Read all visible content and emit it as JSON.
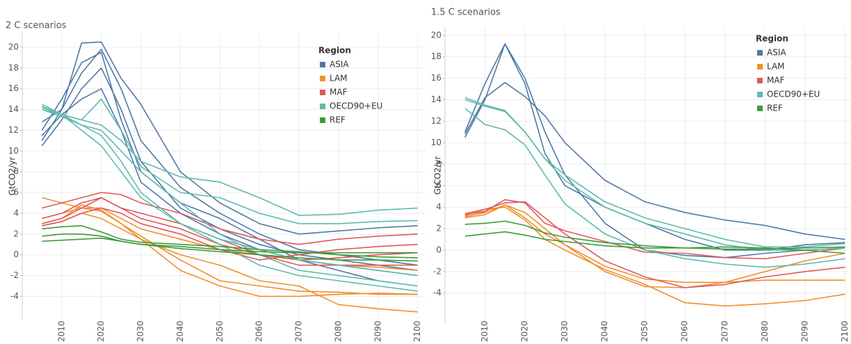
{
  "chart_data": [
    {
      "type": "line",
      "title": "2 C scenarios",
      "y_label": "GtCO2/yr",
      "legend_title": "Region",
      "legend": "upper right",
      "grid": true,
      "x": [
        2005,
        2010,
        2015,
        2020,
        2025,
        2030,
        2040,
        2050,
        2060,
        2070,
        2080,
        2090,
        2100
      ],
      "xlim": [
        2000,
        2102
      ],
      "xticks": [
        2010,
        2020,
        2030,
        2040,
        2050,
        2060,
        2070,
        2080,
        2090,
        2100
      ],
      "ylim": [
        -6.25,
        21.4
      ],
      "yticks": [
        -4,
        -2,
        0,
        2,
        4,
        6,
        8,
        10,
        12,
        14,
        16,
        18,
        20
      ],
      "series": [
        {
          "name": "ASIA",
          "color": "#4e79a7",
          "lines": [
            [
              11,
              14,
              20.4,
              20.5,
              17,
              14.5,
              8,
              5,
              3,
              2,
              2.3,
              2.6,
              2.8
            ],
            [
              12.8,
              14,
              17.5,
              19.8,
              16,
              11,
              6.5,
              4,
              2,
              0.5,
              0,
              -0.5,
              -1
            ],
            [
              10.5,
              13,
              16,
              18,
              14,
              9,
              4.5,
              2.5,
              1,
              0,
              -0.5,
              -1,
              -1.5
            ],
            [
              12,
              15,
              18.5,
              19.5,
              13,
              8,
              5,
              3.5,
              1.5,
              -0.5,
              -1.5,
              -2.5,
              -3
            ],
            [
              11.5,
              13.5,
              15,
              16,
              12,
              7,
              4,
              2,
              0.5,
              -0.5,
              -1,
              -1.5,
              -2
            ]
          ]
        },
        {
          "name": "LAM",
          "color": "#f28e2b",
          "lines": [
            [
              5.5,
              5,
              4.5,
              4.2,
              3,
              1.8,
              -0.5,
              -2.5,
              -3,
              -3.5,
              -3.6,
              -3.8,
              -3.8
            ],
            [
              3,
              3.5,
              4.8,
              4.3,
              3,
              1.5,
              -1.5,
              -3,
              -4,
              -4,
              -3.8,
              -3.7,
              -3.8
            ],
            [
              2.8,
              3.2,
              4,
              3.5,
              2.5,
              1.5,
              0,
              -1,
              -2.5,
              -3,
              -4.8,
              -5.2,
              -5.5
            ],
            [
              3.5,
              4,
              4.5,
              4.5,
              3.5,
              2.5,
              1.5,
              0.5,
              0,
              -0.5,
              -1,
              -1.2,
              -1.5
            ]
          ]
        },
        {
          "name": "MAF",
          "color": "#e15759",
          "lines": [
            [
              4.5,
              5,
              5.5,
              6,
              5.8,
              5,
              4,
              2.5,
              1.5,
              1,
              1.5,
              1.8,
              2
            ],
            [
              3,
              3.5,
              4.5,
              5.5,
              4.5,
              3.5,
              2.5,
              1,
              0,
              -0.5,
              -0.3,
              0,
              0.2
            ],
            [
              3.5,
              4,
              5,
              5.5,
              4.5,
              4,
              3,
              1.5,
              0,
              -1,
              -1,
              -1,
              -1
            ],
            [
              2.8,
              3.2,
              4,
              4.5,
              4,
              3,
              2,
              0.5,
              -0.5,
              0,
              0.5,
              0.8,
              1
            ]
          ]
        },
        {
          "name": "OECD90+EU",
          "color": "#5fb9ad",
          "lines": [
            [
              14.5,
              13.5,
              13,
              12.5,
              11,
              9,
              7.5,
              7,
              5.5,
              3.8,
              3.9,
              4.3,
              4.5
            ],
            [
              14.2,
              13.5,
              13,
              15,
              12,
              8.5,
              6,
              5.5,
              4,
              3,
              3,
              3.2,
              3.3
            ],
            [
              14,
              13.5,
              12.5,
              12,
              10,
              8,
              5,
              2,
              0,
              -1.5,
              -2,
              -2.5,
              -3
            ],
            [
              14,
              13.3,
              12.5,
              11.5,
              9,
              6,
              3,
              1,
              -1,
              -2,
              -2.5,
              -3,
              -3.5
            ],
            [
              14.3,
              13.5,
              12,
              10.5,
              8,
              5.5,
              3,
              1.5,
              0.5,
              -0.5,
              -1,
              -1.5,
              -2
            ]
          ]
        },
        {
          "name": "REF",
          "color": "#3d9b3a",
          "lines": [
            [
              1.3,
              1.4,
              1.5,
              1.6,
              1.3,
              1,
              0.8,
              0.5,
              0.3,
              0.2,
              0.2,
              0.2,
              0.2
            ],
            [
              2.5,
              2.7,
              2.8,
              2.2,
              1.5,
              1.2,
              1,
              0.8,
              0.5,
              0.3,
              0,
              -0.2,
              -0.3
            ],
            [
              1.8,
              2,
              2,
              1.8,
              1.3,
              1,
              0.6,
              0.3,
              0,
              -0.3,
              -0.5,
              -0.5,
              -0.6
            ]
          ]
        }
      ]
    },
    {
      "type": "line",
      "title": "1.5 C scenarios",
      "y_label": "GtCO2/yr",
      "legend_title": "Region",
      "legend": "upper right",
      "grid": true,
      "x": [
        2005,
        2010,
        2015,
        2020,
        2025,
        2030,
        2040,
        2050,
        2060,
        2070,
        2080,
        2090,
        2100
      ],
      "xlim": [
        2000,
        2101.5
      ],
      "xticks": [
        2010,
        2020,
        2030,
        2040,
        2050,
        2060,
        2070,
        2080,
        2090,
        2100
      ],
      "ylim": [
        -6.8,
        20.7
      ],
      "yticks": [
        -4,
        -2,
        0,
        2,
        4,
        6,
        8,
        10,
        12,
        14,
        16,
        18,
        20
      ],
      "series": [
        {
          "name": "ASIA",
          "color": "#4e79a7",
          "lines": [
            [
              10.8,
              14.2,
              15.6,
              14.3,
              12.5,
              10,
              6.5,
              4.5,
              3.5,
              2.8,
              2.3,
              1.5,
              1
            ],
            [
              11,
              15.5,
              19.2,
              16,
              11,
              7,
              2.5,
              0,
              -0.5,
              -0.7,
              -0.3,
              0,
              0.2
            ],
            [
              10.5,
              14,
              19.2,
              15.5,
              9,
              6,
              4,
              2.5,
              1,
              0,
              0,
              0.5,
              0.7
            ]
          ]
        },
        {
          "name": "LAM",
          "color": "#f28e2b",
          "lines": [
            [
              3,
              3.3,
              4.2,
              3,
              1.5,
              0.5,
              -1.5,
              -2.7,
              -3,
              -3,
              -2.8,
              -2.8,
              -2.8
            ],
            [
              3.2,
              3.8,
              4,
              2.8,
              1,
              0,
              -1.8,
              -3.2,
              -4.9,
              -5.2,
              -5,
              -4.7,
              -4.1
            ],
            [
              3.1,
              3.5,
              4.2,
              3.5,
              2,
              0.5,
              -2,
              -3.4,
              -3.5,
              -3,
              -2,
              -1,
              -0.3
            ]
          ]
        },
        {
          "name": "MAF",
          "color": "#e15759",
          "lines": [
            [
              3.3,
              3.6,
              4.7,
              4.4,
              2.5,
              1.8,
              0.8,
              -0.2,
              -0.3,
              -0.7,
              -0.8,
              -0.3,
              0.2
            ],
            [
              3.4,
              3.8,
              4.4,
              4.5,
              3,
              1.5,
              -1,
              -2.5,
              -3.5,
              -3.2,
              -2.5,
              -2,
              -1.6
            ]
          ]
        },
        {
          "name": "OECD90+EU",
          "color": "#5fb9ad",
          "lines": [
            [
              14.2,
              13.5,
              13,
              11,
              8.5,
              7,
              4.5,
              3,
              2,
              1,
              0.3,
              0.3,
              0.6
            ],
            [
              13.2,
              11.7,
              11.2,
              9.8,
              7,
              4.3,
              1.5,
              0,
              -0.8,
              -1.3,
              -1.6,
              -1.3,
              -0.8
            ],
            [
              14,
              13.4,
              12.9,
              11,
              8.5,
              6.5,
              4,
              2.5,
              1.5,
              0.5,
              0,
              0,
              0.2
            ]
          ]
        },
        {
          "name": "REF",
          "color": "#3d9b3a",
          "lines": [
            [
              2.4,
              2.5,
              2.7,
              2.3,
              1.6,
              1.2,
              0.7,
              0.4,
              0.2,
              0.1,
              0.1,
              0.2,
              0.3
            ],
            [
              1.3,
              1.5,
              1.7,
              1.4,
              1,
              0.8,
              0.4,
              0.2,
              0.2,
              0.3,
              0.2,
              0,
              -0.3
            ]
          ]
        }
      ]
    }
  ]
}
